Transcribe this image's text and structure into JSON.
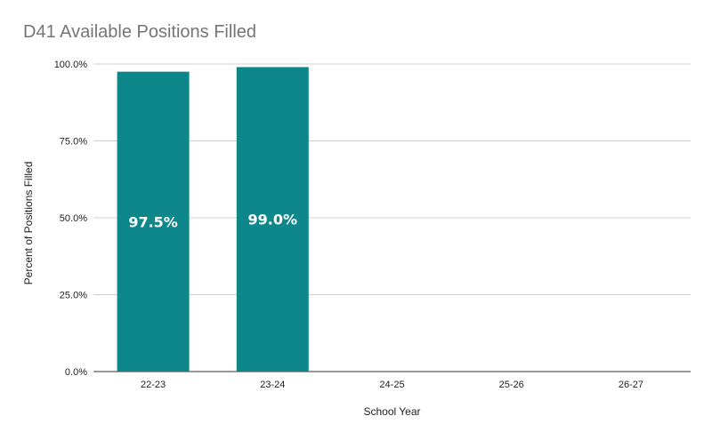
{
  "chart_data": {
    "type": "bar",
    "title": "D41 Available Positions Filled",
    "xlabel": "School Year",
    "ylabel": "Percent of Positions Filled",
    "categories": [
      "22-23",
      "23-24",
      "24-25",
      "25-26",
      "26-27"
    ],
    "values": [
      97.5,
      99.0,
      null,
      null,
      null
    ],
    "data_labels": [
      "97.5%",
      "99.0%",
      "",
      "",
      ""
    ],
    "y_ticks": [
      0,
      25,
      50,
      75,
      100
    ],
    "y_tick_labels": [
      "0.0%",
      "25.0%",
      "50.0%",
      "75.0%",
      "100.0%"
    ],
    "ylim": [
      0,
      100
    ],
    "grid": true,
    "legend": "none",
    "bar_color": "#0e878b",
    "grid_color": "#d0d0d0",
    "axis_color": "#333333"
  }
}
